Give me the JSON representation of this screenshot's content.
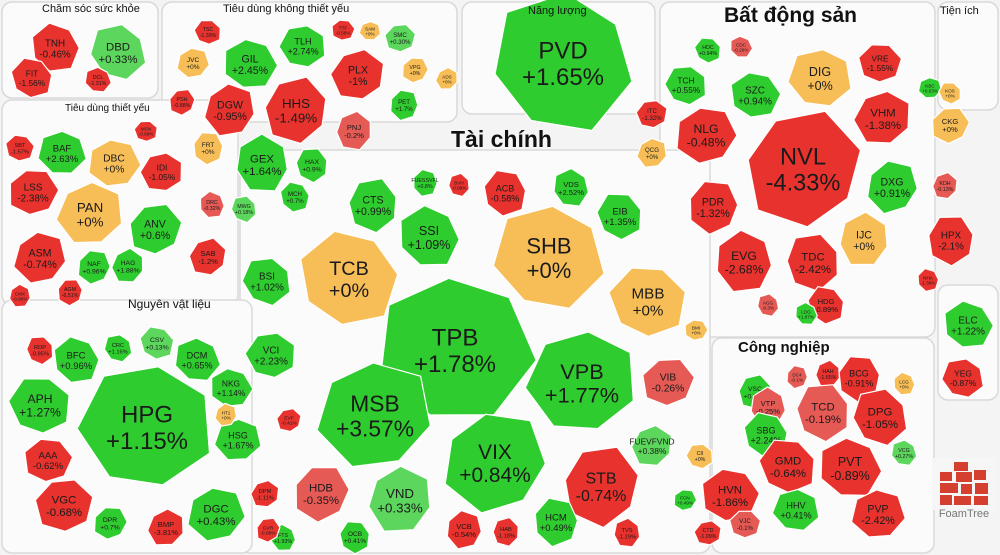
{
  "colors": {
    "up": "#2ecc2e",
    "down": "#e8322e",
    "flat": "#f7be58",
    "up_small": "#5cd65c",
    "down_small": "#e65a55"
  },
  "sectors": [
    {
      "key": "cham_soc_suc_khoe",
      "title": "Chăm sóc sức khỏe"
    },
    {
      "key": "tieu_dung_khong_thiet_yeu",
      "title": "Tiêu dùng không thiết yếu"
    },
    {
      "key": "nang_luong",
      "title": "Năng lượng"
    },
    {
      "key": "bat_dong_san",
      "title": "Bất động sản"
    },
    {
      "key": "tien_ich",
      "title": "Tiện ích"
    },
    {
      "key": "tieu_dung_thiet_yeu",
      "title": "Tiêu dùng thiết yếu"
    },
    {
      "key": "tai_chinh",
      "title": "Tài chính"
    },
    {
      "key": "nguyen_vat_lieu",
      "title": "Nguyên vật liệu"
    },
    {
      "key": "cong_nghiep",
      "title": "Công nghiệp"
    }
  ],
  "tiles": [
    {
      "ticker": "TNH",
      "change": "-0.46%"
    },
    {
      "ticker": "DBD",
      "change": "+0.33%"
    },
    {
      "ticker": "FIT",
      "change": "-1.56%"
    },
    {
      "ticker": "DCL",
      "change": "-1.31%"
    },
    {
      "ticker": "TSC",
      "change": "-1.39%"
    },
    {
      "ticker": "GIL",
      "change": "+2.45%"
    },
    {
      "ticker": "TLH",
      "change": "+2.74%"
    },
    {
      "ticker": "TTF",
      "change": "-0.56%"
    },
    {
      "ticker": "SAM",
      "change": "+0%"
    },
    {
      "ticker": "SMC",
      "change": "+0.30%"
    },
    {
      "ticker": "JVC",
      "change": "+0%"
    },
    {
      "ticker": "PLX",
      "change": "-1%"
    },
    {
      "ticker": "VPG",
      "change": "+0%"
    },
    {
      "ticker": "ADS",
      "change": "+0%"
    },
    {
      "ticker": "PSH",
      "change": "-0.88%"
    },
    {
      "ticker": "DGW",
      "change": "-0.95%"
    },
    {
      "ticker": "HHS",
      "change": "-1.49%"
    },
    {
      "ticker": "PET",
      "change": "+1.7%"
    },
    {
      "ticker": "PNJ",
      "change": "-0.2%"
    },
    {
      "ticker": "FRT",
      "change": "+0%"
    },
    {
      "ticker": "GEX",
      "change": "+1.64%"
    },
    {
      "ticker": "HAX",
      "change": "+0.9%"
    },
    {
      "ticker": "DRC",
      "change": "-0.32%"
    },
    {
      "ticker": "MWG",
      "change": "+0.18%"
    },
    {
      "ticker": "MCH",
      "change": "+0.7%"
    },
    {
      "ticker": "PVD",
      "change": "+1.65%"
    },
    {
      "ticker": "HDC",
      "change": "+0.94%"
    },
    {
      "ticker": "CDC",
      "change": "-0.29%"
    },
    {
      "ticker": "TCH",
      "change": "+0.55%"
    },
    {
      "ticker": "SZC",
      "change": "+0.94%"
    },
    {
      "ticker": "DIG",
      "change": "+0%"
    },
    {
      "ticker": "VRE",
      "change": "-1.55%"
    },
    {
      "ticker": "KBC",
      "change": "+0.53%"
    },
    {
      "ticker": "ITC",
      "change": "-1.32%"
    },
    {
      "ticker": "NLG",
      "change": "-0.48%"
    },
    {
      "ticker": "VHM",
      "change": "-1.38%"
    },
    {
      "ticker": "CKG",
      "change": "+0%"
    },
    {
      "ticker": "QCG",
      "change": "+0%"
    },
    {
      "ticker": "NVL",
      "change": "-4.33%"
    },
    {
      "ticker": "DXG",
      "change": "+0.91%"
    },
    {
      "ticker": "KDH",
      "change": "-0.13%"
    },
    {
      "ticker": "PDR",
      "change": "-1.32%"
    },
    {
      "ticker": "IJC",
      "change": "+0%"
    },
    {
      "ticker": "HPX",
      "change": "-2.1%"
    },
    {
      "ticker": "EVG",
      "change": "-2.68%"
    },
    {
      "ticker": "TDC",
      "change": "-2.42%"
    },
    {
      "ticker": "NHA",
      "change": "-1.36%"
    },
    {
      "ticker": "AGG",
      "change": "-0.3%"
    },
    {
      "ticker": "HDG",
      "change": "-0.89%"
    },
    {
      "ticker": "LDG",
      "change": "+1.87%"
    },
    {
      "ticker": "KOS",
      "change": "+0%"
    },
    {
      "ticker": "ELC",
      "change": "+1.22%"
    },
    {
      "ticker": "YEG",
      "change": "-0.87%"
    },
    {
      "ticker": "SBT",
      "change": "-1.57%"
    },
    {
      "ticker": "BAF",
      "change": "+2.63%"
    },
    {
      "ticker": "MSN",
      "change": "-0.69%"
    },
    {
      "ticker": "DBC",
      "change": "+0%"
    },
    {
      "ticker": "IDI",
      "change": "-1.05%"
    },
    {
      "ticker": "LSS",
      "change": "-2.38%"
    },
    {
      "ticker": "PAN",
      "change": "+0%"
    },
    {
      "ticker": "ANV",
      "change": "+0.6%"
    },
    {
      "ticker": "ASM",
      "change": "-0.74%"
    },
    {
      "ticker": "SAB",
      "change": "-1.2%"
    },
    {
      "ticker": "NAF",
      "change": "+0.96%"
    },
    {
      "ticker": "HAG",
      "change": "+1.88%"
    },
    {
      "ticker": "AGM",
      "change": "-6.51%"
    },
    {
      "ticker": "CMX",
      "change": "-0.88%"
    },
    {
      "ticker": "CTS",
      "change": "+0.99%"
    },
    {
      "ticker": "FUESSVFL",
      "change": "+0.8%"
    },
    {
      "ticker": "BVH",
      "change": "-0.99%"
    },
    {
      "ticker": "ACB",
      "change": "-0.58%"
    },
    {
      "ticker": "VDS",
      "change": "+2.52%"
    },
    {
      "ticker": "EIB",
      "change": "+1.35%"
    },
    {
      "ticker": "SSI",
      "change": "+1.09%"
    },
    {
      "ticker": "BSI",
      "change": "+1.02%"
    },
    {
      "ticker": "TCB",
      "change": "+0%"
    },
    {
      "ticker": "SHB",
      "change": "+0%"
    },
    {
      "ticker": "MBB",
      "change": "+0%"
    },
    {
      "ticker": "TPB",
      "change": "+1.78%"
    },
    {
      "ticker": "VCI",
      "change": "+2.23%"
    },
    {
      "ticker": "BMI",
      "change": "+0%"
    },
    {
      "ticker": "VPB",
      "change": "+1.77%"
    },
    {
      "ticker": "VIB",
      "change": "-0.26%"
    },
    {
      "ticker": "MSB",
      "change": "+3.57%"
    },
    {
      "ticker": "EVF",
      "change": "-0.41%"
    },
    {
      "ticker": "VIX",
      "change": "+0.84%"
    },
    {
      "ticker": "FUEVFVND",
      "change": "+0.38%"
    },
    {
      "ticker": "HDB",
      "change": "-0.35%"
    },
    {
      "ticker": "VND",
      "change": "+0.33%"
    },
    {
      "ticker": "STB",
      "change": "-0.74%"
    },
    {
      "ticker": "VCB",
      "change": "-0.54%"
    },
    {
      "ticker": "HAB",
      "change": "-1.18%"
    },
    {
      "ticker": "HCM",
      "change": "+0.49%"
    },
    {
      "ticker": "TVS",
      "change": "-1.29%"
    },
    {
      "ticker": "OCB",
      "change": "+0.41%"
    },
    {
      "ticker": "FTS",
      "change": "+1.93%"
    },
    {
      "ticker": "RDP",
      "change": "-0.85%"
    },
    {
      "ticker": "BFC",
      "change": "+0.96%"
    },
    {
      "ticker": "CRC",
      "change": "+1.16%"
    },
    {
      "ticker": "CSV",
      "change": "+0.13%"
    },
    {
      "ticker": "DCM",
      "change": "+0.65%"
    },
    {
      "ticker": "APH",
      "change": "+1.27%"
    },
    {
      "ticker": "NKG",
      "change": "+1.14%"
    },
    {
      "ticker": "HPG",
      "change": "+1.15%"
    },
    {
      "ticker": "AAA",
      "change": "-0.62%"
    },
    {
      "ticker": "HSG",
      "change": "+1.67%"
    },
    {
      "ticker": "VGC",
      "change": "-0.68%"
    },
    {
      "ticker": "DGC",
      "change": "+0.43%"
    },
    {
      "ticker": "DPM",
      "change": "-1.11%"
    },
    {
      "ticker": "DPR",
      "change": "+0.7%"
    },
    {
      "ticker": "BMP",
      "change": "-3.81%"
    },
    {
      "ticker": "GVR",
      "change": "-0.89%"
    },
    {
      "ticker": "HT1",
      "change": "+0%"
    },
    {
      "ticker": "VSC",
      "change": "+0.85%"
    },
    {
      "ticker": "DC4",
      "change": "-0.1%"
    },
    {
      "ticker": "HAH",
      "change": "-1.65%"
    },
    {
      "ticker": "BCG",
      "change": "-0.91%"
    },
    {
      "ticker": "VTP",
      "change": "-0.25%"
    },
    {
      "ticker": "TCD",
      "change": "-0.19%"
    },
    {
      "ticker": "LCG",
      "change": "+0%"
    },
    {
      "ticker": "DPG",
      "change": "-1.05%"
    },
    {
      "ticker": "SBG",
      "change": "+2.24%"
    },
    {
      "ticker": "VCG",
      "change": "+0.27%"
    },
    {
      "ticker": "GMD",
      "change": "-0.64%"
    },
    {
      "ticker": "PVT",
      "change": "-0.89%"
    },
    {
      "ticker": "CII",
      "change": "+0%"
    },
    {
      "ticker": "HVN",
      "change": "-1.86%"
    },
    {
      "ticker": "HHV",
      "change": "+0.41%"
    },
    {
      "ticker": "VJC",
      "change": "-0.1%"
    },
    {
      "ticker": "PVP",
      "change": "-2.42%"
    },
    {
      "ticker": "CTD",
      "change": "-1.09%"
    },
    {
      "ticker": "FCN",
      "change": "+0.49%"
    }
  ],
  "logo": {
    "label": "FoamTree"
  }
}
